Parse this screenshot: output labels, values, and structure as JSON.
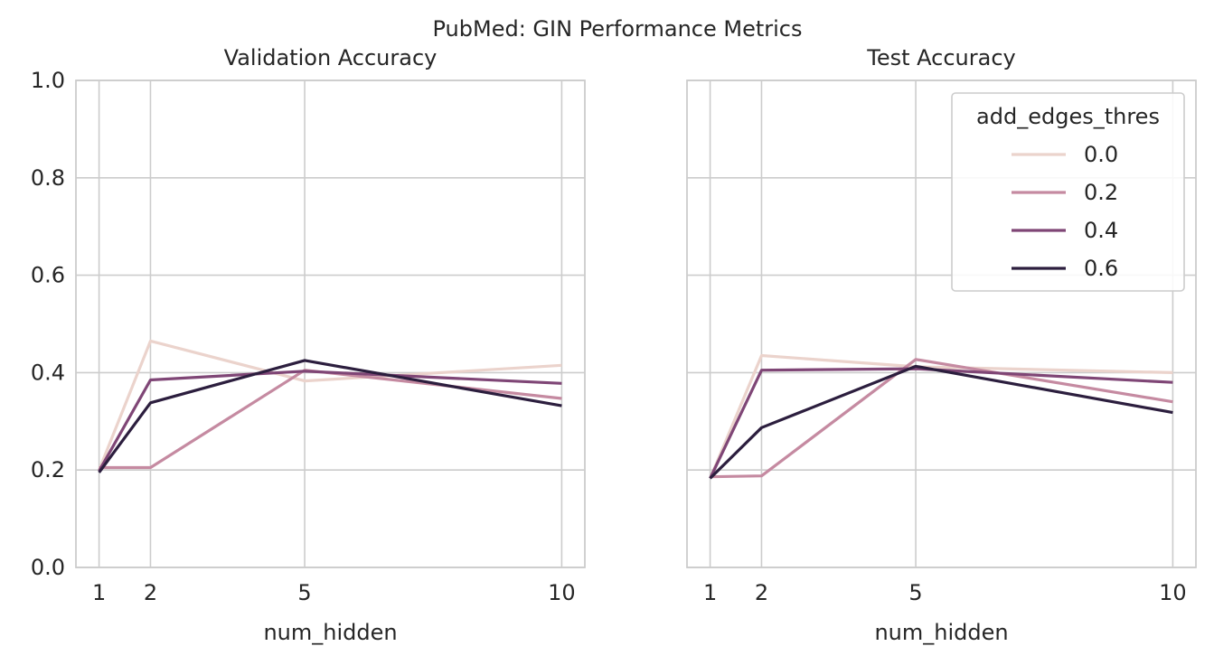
{
  "figure": {
    "suptitle": "PubMed: GIN Performance Metrics"
  },
  "chart_data": [
    {
      "type": "line",
      "title": "Validation Accuracy",
      "xlabel": "num_hidden",
      "ylabel": "",
      "x": [
        1,
        2,
        5,
        10
      ],
      "xticks": [
        "1",
        "2",
        "5",
        "10"
      ],
      "yticks": [
        "0.0",
        "0.2",
        "0.4",
        "0.6",
        "0.8",
        "1.0"
      ],
      "xlim": [
        0.55,
        10.45
      ],
      "ylim": [
        0.0,
        1.0
      ],
      "grid": true,
      "legend": null,
      "series": [
        {
          "name": "0.0",
          "color": "#ebd3cc",
          "values": [
            0.2,
            0.465,
            0.383,
            0.415
          ]
        },
        {
          "name": "0.2",
          "color": "#c58aa1",
          "values": [
            0.205,
            0.205,
            0.405,
            0.347
          ]
        },
        {
          "name": "0.4",
          "color": "#7f4676",
          "values": [
            0.198,
            0.385,
            0.403,
            0.378
          ]
        },
        {
          "name": "0.6",
          "color": "#2c1e3e",
          "values": [
            0.195,
            0.338,
            0.425,
            0.332
          ]
        }
      ]
    },
    {
      "type": "line",
      "title": "Test Accuracy",
      "xlabel": "num_hidden",
      "ylabel": "",
      "x": [
        1,
        2,
        5,
        10
      ],
      "xticks": [
        "1",
        "2",
        "5",
        "10"
      ],
      "yticks": [],
      "xlim": [
        0.55,
        10.45
      ],
      "ylim": [
        0.0,
        1.0
      ],
      "grid": true,
      "legend": {
        "title": "add_edges_thres",
        "placement": "top-right"
      },
      "series": [
        {
          "name": "0.0",
          "color": "#ebd3cc",
          "values": [
            0.183,
            0.435,
            0.412,
            0.4
          ]
        },
        {
          "name": "0.2",
          "color": "#c58aa1",
          "values": [
            0.186,
            0.188,
            0.427,
            0.34
          ]
        },
        {
          "name": "0.4",
          "color": "#7f4676",
          "values": [
            0.183,
            0.405,
            0.408,
            0.38
          ]
        },
        {
          "name": "0.6",
          "color": "#2c1e3e",
          "values": [
            0.183,
            0.287,
            0.413,
            0.318
          ]
        }
      ]
    }
  ]
}
